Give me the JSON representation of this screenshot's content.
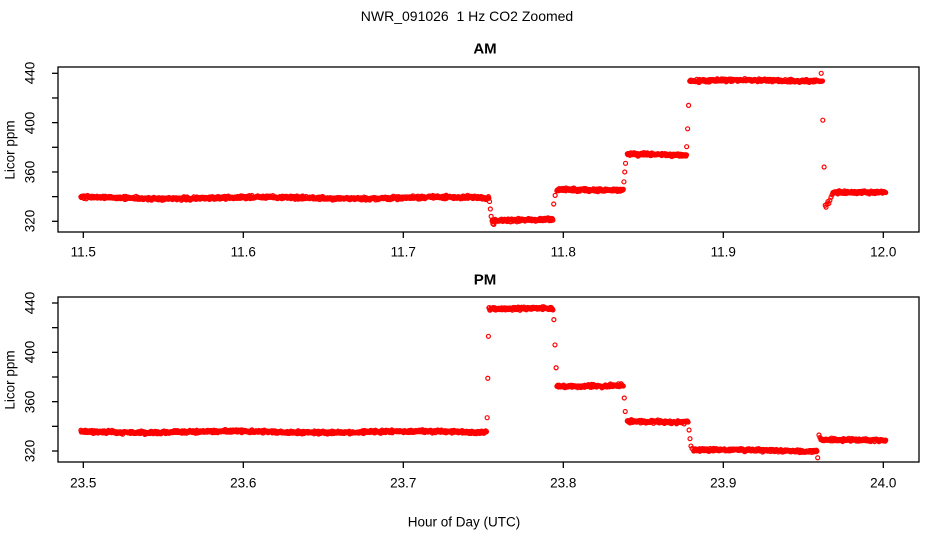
{
  "figure": {
    "title": "NWR_091026  1 Hz CO2 Zoomed",
    "xlabel": "Hour of Day (UTC)",
    "point_color": "#ff0000",
    "axis_color": "#000000",
    "background_color": "#ffffff"
  },
  "chart_data": [
    {
      "type": "scatter",
      "title": "AM",
      "ylabel": "Licor ppm",
      "marker": "open-circle",
      "xlim": [
        11.468,
        12.032
      ],
      "ylim": [
        311,
        445
      ],
      "xticks": [
        11.5,
        11.6,
        11.7,
        11.8,
        11.9,
        12.0
      ],
      "yticks_labeled": [
        320,
        360,
        400,
        440
      ],
      "yticks_minor": [
        340,
        380,
        420
      ],
      "sample_rate_hz": 1,
      "segments": [
        {
          "x0": 11.4985,
          "x1": 11.7535,
          "y": 339
        },
        {
          "x0": 11.7555,
          "x1": 11.7935,
          "y": 321
        },
        {
          "x0": 11.796,
          "x1": 11.8375,
          "y": 346
        },
        {
          "x0": 11.84,
          "x1": 11.877,
          "y": 374
        },
        {
          "x0": 11.879,
          "x1": 11.962,
          "y": 434
        },
        {
          "x0": 11.9685,
          "x1": 12.0015,
          "y": 343
        }
      ],
      "transition_points": [
        {
          "x": 11.7539,
          "y": 336
        },
        {
          "x": 11.7544,
          "y": 330
        },
        {
          "x": 11.7549,
          "y": 324
        },
        {
          "x": 11.756,
          "y": 318
        },
        {
          "x": 11.7566,
          "y": 317.5
        },
        {
          "x": 11.794,
          "y": 334
        },
        {
          "x": 11.7949,
          "y": 341
        },
        {
          "x": 11.8379,
          "y": 352
        },
        {
          "x": 11.8384,
          "y": 360
        },
        {
          "x": 11.8389,
          "y": 367
        },
        {
          "x": 11.8771,
          "y": 380.5
        },
        {
          "x": 11.8777,
          "y": 395
        },
        {
          "x": 11.8783,
          "y": 414
        },
        {
          "x": 11.9612,
          "y": 440
        },
        {
          "x": 11.9622,
          "y": 402
        },
        {
          "x": 11.963,
          "y": 364
        },
        {
          "x": 11.9637,
          "y": 333
        },
        {
          "x": 11.9642,
          "y": 331.5
        },
        {
          "x": 11.9648,
          "y": 334
        },
        {
          "x": 11.9654,
          "y": 336
        },
        {
          "x": 11.966,
          "y": 334.5
        },
        {
          "x": 11.9666,
          "y": 337
        },
        {
          "x": 11.9673,
          "y": 339.5
        },
        {
          "x": 11.968,
          "y": 341.5
        }
      ]
    },
    {
      "type": "scatter",
      "title": "PM",
      "ylabel": "Licor ppm",
      "marker": "open-circle",
      "xlim": [
        23.468,
        24.032
      ],
      "ylim": [
        311,
        445
      ],
      "xticks": [
        23.5,
        23.6,
        23.7,
        23.8,
        23.9,
        24.0
      ],
      "yticks_labeled": [
        320,
        360,
        400,
        440
      ],
      "yticks_minor": [
        340,
        380,
        420
      ],
      "sample_rate_hz": 1,
      "segments": [
        {
          "x0": 23.4985,
          "x1": 23.752,
          "y": 335.5
        },
        {
          "x0": 23.7535,
          "x1": 23.7935,
          "y": 435
        },
        {
          "x0": 23.796,
          "x1": 23.8375,
          "y": 373
        },
        {
          "x0": 23.84,
          "x1": 23.878,
          "y": 344
        },
        {
          "x0": 23.8815,
          "x1": 23.9585,
          "y": 320.5
        },
        {
          "x0": 23.961,
          "x1": 24.0015,
          "y": 328.5
        }
      ],
      "transition_points": [
        {
          "x": 23.7524,
          "y": 347
        },
        {
          "x": 23.7528,
          "y": 379
        },
        {
          "x": 23.7532,
          "y": 413
        },
        {
          "x": 23.7941,
          "y": 426.5
        },
        {
          "x": 23.7948,
          "y": 406
        },
        {
          "x": 23.7955,
          "y": 387.5
        },
        {
          "x": 23.8381,
          "y": 363
        },
        {
          "x": 23.8387,
          "y": 352
        },
        {
          "x": 23.8786,
          "y": 337
        },
        {
          "x": 23.8792,
          "y": 330
        },
        {
          "x": 23.8798,
          "y": 324
        },
        {
          "x": 23.8805,
          "y": 322
        },
        {
          "x": 23.959,
          "y": 314.5
        },
        {
          "x": 23.9598,
          "y": 333
        },
        {
          "x": 23.9604,
          "y": 331
        },
        {
          "x": 23.9612,
          "y": 330
        }
      ]
    }
  ]
}
